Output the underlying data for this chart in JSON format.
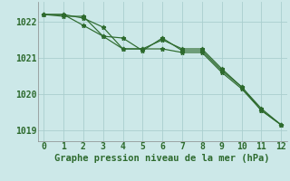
{
  "series1_x": [
    0,
    1,
    2,
    3,
    4,
    5,
    6,
    7,
    8,
    9,
    10,
    11,
    12
  ],
  "series1_y": [
    1022.2,
    1022.2,
    1021.9,
    1021.6,
    1021.55,
    1021.2,
    1021.55,
    1021.2,
    1021.2,
    1020.65,
    1020.2,
    1019.55,
    1019.15
  ],
  "series2_x": [
    0,
    1,
    2,
    3,
    4,
    5,
    6,
    7,
    8,
    9,
    10,
    11,
    12
  ],
  "series2_y": [
    1022.2,
    1022.2,
    1022.1,
    1021.85,
    1021.25,
    1021.25,
    1021.25,
    1021.15,
    1021.15,
    1020.6,
    1020.15,
    1019.55,
    1019.15
  ],
  "series3_x": [
    0,
    1,
    2,
    3,
    4,
    5,
    6,
    7,
    8,
    9,
    10,
    11,
    12
  ],
  "series3_y": [
    1022.2,
    1022.15,
    1022.15,
    1021.6,
    1021.25,
    1021.25,
    1021.5,
    1021.25,
    1021.25,
    1020.7,
    1020.2,
    1019.6,
    1019.15
  ],
  "line_color": "#2d6a2d",
  "bg_color": "#cce8e8",
  "grid_color": "#aacece",
  "xlabel": "Graphe pression niveau de la mer (hPa)",
  "ylim": [
    1018.7,
    1022.55
  ],
  "xlim": [
    -0.3,
    12.3
  ],
  "yticks": [
    1019,
    1020,
    1021,
    1022
  ],
  "xticks": [
    0,
    1,
    2,
    3,
    4,
    5,
    6,
    7,
    8,
    9,
    10,
    11,
    12
  ],
  "xlabel_fontsize": 7.5,
  "tick_fontsize": 7,
  "marker": "*",
  "markersize": 3.5
}
